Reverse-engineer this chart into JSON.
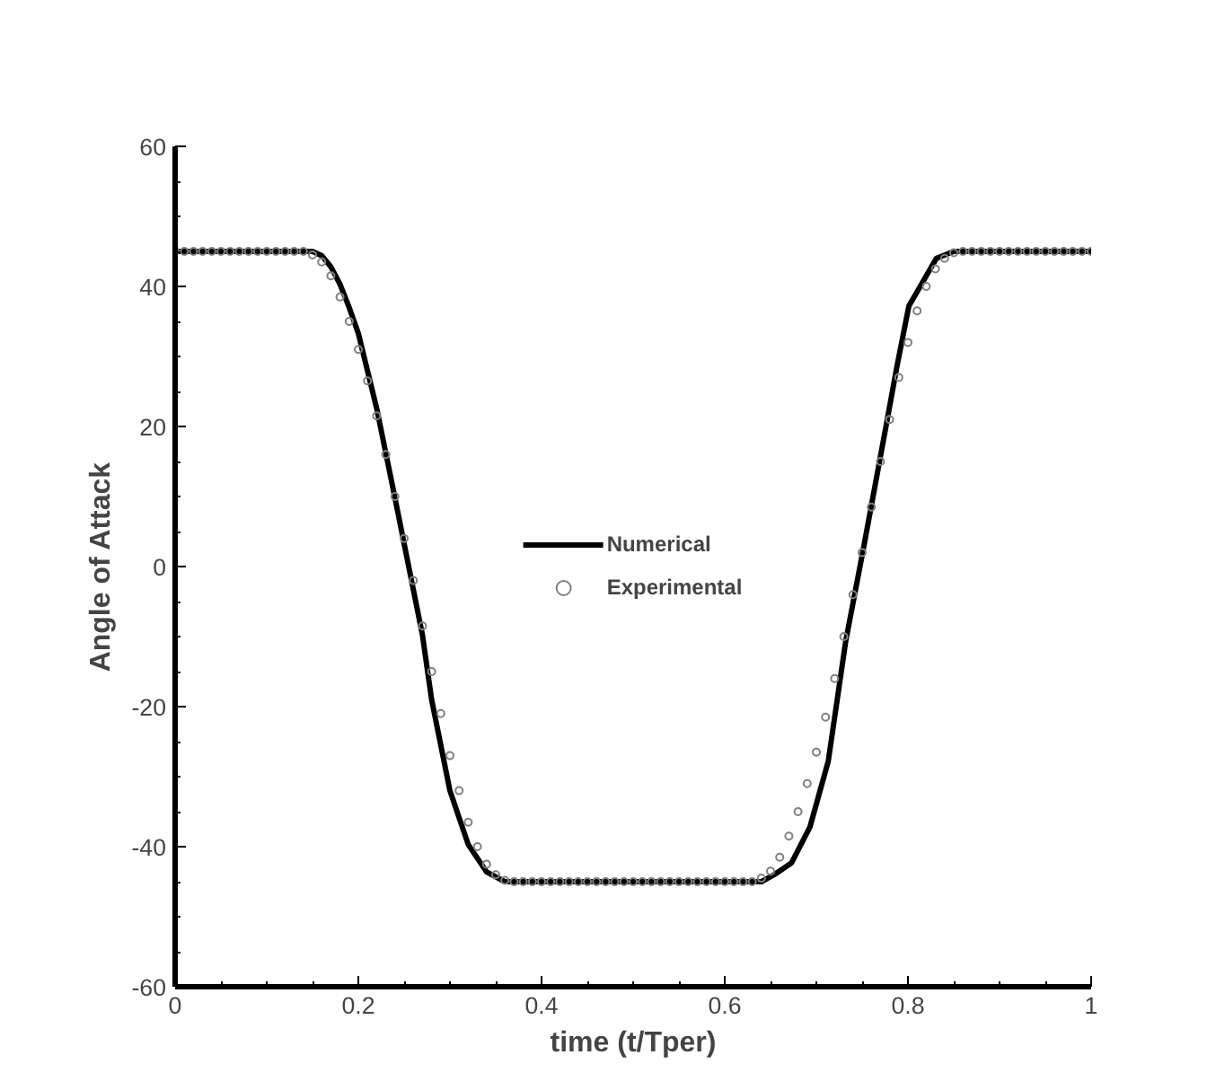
{
  "chart_data": {
    "type": "line",
    "xlabel": "time (t/Tper)",
    "ylabel": "Angle of Attack",
    "xlim": [
      0,
      1
    ],
    "ylim": [
      -60,
      60
    ],
    "xticks": [
      0,
      0.2,
      0.4,
      0.6,
      0.8,
      1
    ],
    "yticks": [
      -60,
      -40,
      -20,
      0,
      20,
      40,
      60
    ],
    "grid": false,
    "legend": "center",
    "series": [
      {
        "name": "Numerical",
        "color": "#000000",
        "line_style": "solid",
        "x": [
          0,
          0.15,
          0.16,
          0.17,
          0.18,
          0.19,
          0.2,
          0.22,
          0.24,
          0.27,
          0.28,
          0.3,
          0.32,
          0.34,
          0.36,
          0.64,
          0.654,
          0.673,
          0.693,
          0.713,
          0.732,
          0.752,
          0.776,
          0.788,
          0.801,
          0.831,
          0.85,
          1
        ],
        "values": [
          45,
          45,
          44.4,
          42.8,
          40.3,
          37,
          33.3,
          22.6,
          9.8,
          -9.8,
          -19,
          -32,
          -39.7,
          -43.6,
          -45,
          -45,
          -44,
          -42.3,
          -37.2,
          -27.8,
          -10.7,
          3,
          20,
          28.6,
          37.2,
          44,
          45,
          45
        ]
      },
      {
        "name": "Experimental",
        "type": "scatter",
        "color": "#808080",
        "marker": "circle",
        "x": [
          0,
          0.01,
          0.02,
          0.03,
          0.04,
          0.05,
          0.06,
          0.07,
          0.08,
          0.09,
          0.1,
          0.11,
          0.12,
          0.13,
          0.14,
          0.15,
          0.16,
          0.17,
          0.18,
          0.19,
          0.2,
          0.21,
          0.22,
          0.23,
          0.24,
          0.25,
          0.26,
          0.27,
          0.28,
          0.29,
          0.3,
          0.31,
          0.32,
          0.33,
          0.34,
          0.35,
          0.36,
          0.37,
          0.38,
          0.39,
          0.4,
          0.41,
          0.42,
          0.43,
          0.44,
          0.45,
          0.46,
          0.47,
          0.48,
          0.49,
          0.5,
          0.51,
          0.52,
          0.53,
          0.54,
          0.55,
          0.56,
          0.57,
          0.58,
          0.59,
          0.6,
          0.61,
          0.62,
          0.63,
          0.64,
          0.65,
          0.66,
          0.67,
          0.68,
          0.69,
          0.7,
          0.71,
          0.72,
          0.73,
          0.74,
          0.75,
          0.76,
          0.77,
          0.78,
          0.79,
          0.8,
          0.81,
          0.82,
          0.83,
          0.84,
          0.85,
          0.86,
          0.87,
          0.88,
          0.89,
          0.9,
          0.91,
          0.92,
          0.93,
          0.94,
          0.95,
          0.96,
          0.97,
          0.98,
          0.99,
          1
        ],
        "values": [
          45,
          45,
          45,
          45,
          45,
          45,
          45,
          45,
          45,
          45,
          45,
          45,
          45,
          45,
          45,
          44.5,
          43.5,
          41.5,
          38.5,
          35,
          31,
          26.5,
          21.5,
          16,
          10,
          4,
          -2,
          -8.5,
          -15,
          -21,
          -27,
          -32,
          -36.5,
          -40,
          -42.5,
          -44,
          -44.8,
          -45,
          -45,
          -45,
          -45,
          -45,
          -45,
          -45,
          -45,
          -45,
          -45,
          -45,
          -45,
          -45,
          -45,
          -45,
          -45,
          -45,
          -45,
          -45,
          -45,
          -45,
          -45,
          -45,
          -45,
          -45,
          -45,
          -45,
          -44.5,
          -43.5,
          -41.5,
          -38.5,
          -35,
          -31,
          -26.5,
          -21.5,
          -16,
          -10,
          -4,
          2,
          8.5,
          15,
          21,
          27,
          32,
          36.5,
          40,
          42.5,
          44,
          44.8,
          45,
          45,
          45,
          45,
          45,
          45,
          45,
          45,
          45,
          45,
          45,
          45,
          45,
          45,
          45
        ]
      }
    ]
  }
}
